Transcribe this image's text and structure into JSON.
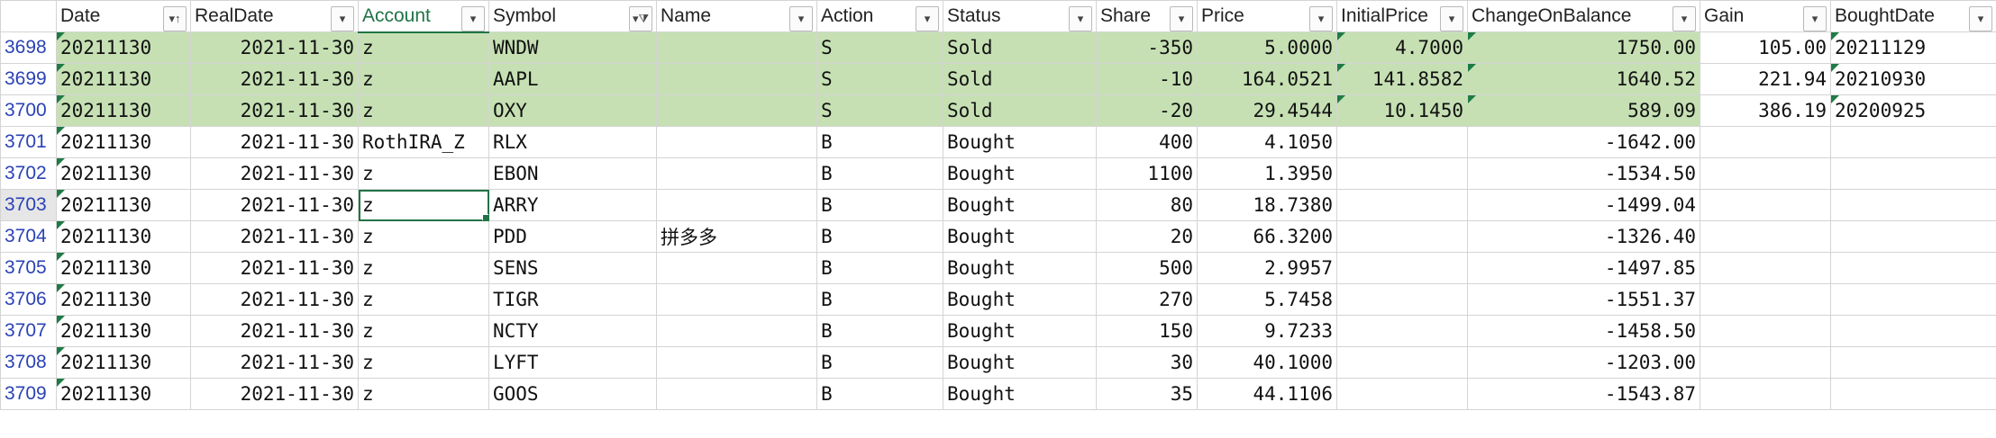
{
  "columns": [
    {
      "key": "Date",
      "label": "Date",
      "filter_icon": "sort-filter-icon"
    },
    {
      "key": "RealDate",
      "label": "RealDate",
      "filter_icon": "dropdown-icon"
    },
    {
      "key": "Account",
      "label": "Account",
      "filter_icon": "dropdown-icon",
      "active": true
    },
    {
      "key": "Symbol",
      "label": "Symbol",
      "filter_icon": "filter-funnel-icon"
    },
    {
      "key": "Name",
      "label": "Name",
      "filter_icon": "dropdown-icon"
    },
    {
      "key": "Action",
      "label": "Action",
      "filter_icon": "dropdown-icon"
    },
    {
      "key": "Status",
      "label": "Status",
      "filter_icon": "dropdown-icon"
    },
    {
      "key": "Share",
      "label": "Share",
      "filter_icon": "dropdown-icon"
    },
    {
      "key": "Price",
      "label": "Price",
      "filter_icon": "dropdown-icon"
    },
    {
      "key": "InitialPrice",
      "label": "InitialPrice",
      "filter_icon": "dropdown-icon"
    },
    {
      "key": "ChangeOnBalance",
      "label": "ChangeOnBalance",
      "filter_icon": "dropdown-icon"
    },
    {
      "key": "Gain",
      "label": "Gain",
      "filter_icon": "dropdown-icon"
    },
    {
      "key": "BoughtDate",
      "label": "BoughtDate",
      "filter_icon": "dropdown-icon"
    }
  ],
  "rows": [
    {
      "n": "3698",
      "sold": true,
      "cells": [
        "20211130",
        "2021-11-30",
        "z",
        "WNDW",
        "",
        "S",
        "Sold",
        "-350",
        "5.0000",
        "4.7000",
        "1750.00",
        "105.00",
        "20211129"
      ]
    },
    {
      "n": "3699",
      "sold": true,
      "cells": [
        "20211130",
        "2021-11-30",
        "z",
        "AAPL",
        "",
        "S",
        "Sold",
        "-10",
        "164.0521",
        "141.8582",
        "1640.52",
        "221.94",
        "20210930"
      ]
    },
    {
      "n": "3700",
      "sold": true,
      "cells": [
        "20211130",
        "2021-11-30",
        "z",
        "OXY",
        "",
        "S",
        "Sold",
        "-20",
        "29.4544",
        "10.1450",
        "589.09",
        "386.19",
        "20200925"
      ]
    },
    {
      "n": "3701",
      "sold": false,
      "cells": [
        "20211130",
        "2021-11-30",
        "RothIRA_Z",
        "RLX",
        "",
        "B",
        "Bought",
        "400",
        "4.1050",
        "",
        "-1642.00",
        "",
        ""
      ]
    },
    {
      "n": "3702",
      "sold": false,
      "cells": [
        "20211130",
        "2021-11-30",
        "z",
        "EBON",
        "",
        "B",
        "Bought",
        "1100",
        "1.3950",
        "",
        "-1534.50",
        "",
        ""
      ]
    },
    {
      "n": "3703",
      "sold": false,
      "active": true,
      "cells": [
        "20211130",
        "2021-11-30",
        "z",
        "ARRY",
        "",
        "B",
        "Bought",
        "80",
        "18.7380",
        "",
        "-1499.04",
        "",
        ""
      ]
    },
    {
      "n": "3704",
      "sold": false,
      "cells": [
        "20211130",
        "2021-11-30",
        "z",
        "PDD",
        "拼多多",
        "B",
        "Bought",
        "20",
        "66.3200",
        "",
        "-1326.40",
        "",
        ""
      ]
    },
    {
      "n": "3705",
      "sold": false,
      "cells": [
        "20211130",
        "2021-11-30",
        "z",
        "SENS",
        "",
        "B",
        "Bought",
        "500",
        "2.9957",
        "",
        "-1497.85",
        "",
        ""
      ]
    },
    {
      "n": "3706",
      "sold": false,
      "cells": [
        "20211130",
        "2021-11-30",
        "z",
        "TIGR",
        "",
        "B",
        "Bought",
        "270",
        "5.7458",
        "",
        "-1551.37",
        "",
        ""
      ]
    },
    {
      "n": "3707",
      "sold": false,
      "cells": [
        "20211130",
        "2021-11-30",
        "z",
        "NCTY",
        "",
        "B",
        "Bought",
        "150",
        "9.7233",
        "",
        "-1458.50",
        "",
        ""
      ]
    },
    {
      "n": "3708",
      "sold": false,
      "cells": [
        "20211130",
        "2021-11-30",
        "z",
        "LYFT",
        "",
        "B",
        "Bought",
        "30",
        "40.1000",
        "",
        "-1203.00",
        "",
        ""
      ]
    },
    {
      "n": "3709",
      "sold": false,
      "cells": [
        "20211130",
        "2021-11-30",
        "z",
        "GOOS",
        "",
        "B",
        "Bought",
        "35",
        "44.1106",
        "",
        "-1543.87",
        "",
        ""
      ]
    }
  ],
  "colors": {
    "sold_fill": "#c6e0b4",
    "accent": "#217346",
    "row_number": "#2a42b5"
  }
}
